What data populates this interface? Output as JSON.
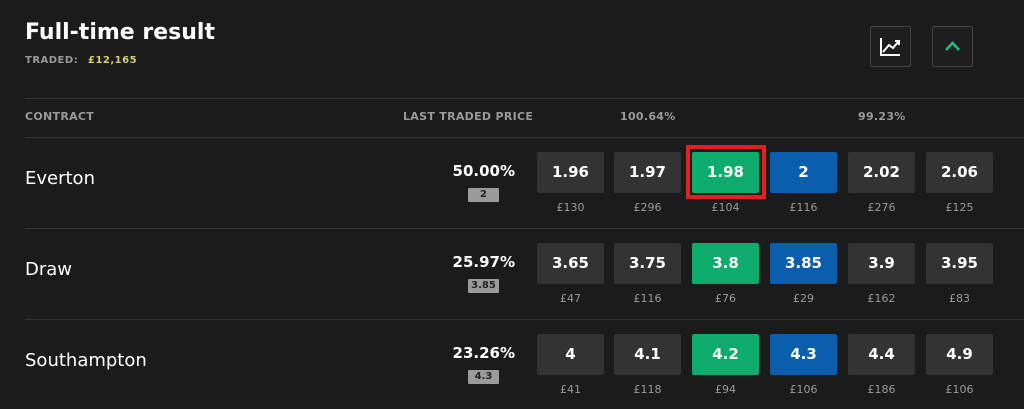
{
  "header": {
    "title": "Full-time result",
    "traded_label": "TRADED:",
    "traded_value": "£12,165"
  },
  "columns": {
    "contract": "CONTRACT",
    "last_traded_price": "LAST TRADED PRICE",
    "back_book": "100.64%",
    "lay_book": "99.23%"
  },
  "rows": [
    {
      "name": "Everton",
      "probability": "50.00%",
      "last_price": "2",
      "prices": [
        "1.96",
        "1.97",
        "1.98",
        "2",
        "2.02",
        "2.06"
      ],
      "stakes": [
        "£130",
        "£296",
        "£104",
        "£116",
        "£276",
        "£125"
      ]
    },
    {
      "name": "Draw",
      "probability": "25.97%",
      "last_price": "3.85",
      "prices": [
        "3.65",
        "3.75",
        "3.8",
        "3.85",
        "3.9",
        "3.95"
      ],
      "stakes": [
        "£47",
        "£116",
        "£76",
        "£29",
        "£162",
        "£83"
      ]
    },
    {
      "name": "Southampton",
      "probability": "23.26%",
      "last_price": "4.3",
      "prices": [
        "4",
        "4.1",
        "4.2",
        "4.3",
        "4.4",
        "4.9"
      ],
      "stakes": [
        "£41",
        "£118",
        "£94",
        "£106",
        "£186",
        "£106"
      ]
    }
  ]
}
